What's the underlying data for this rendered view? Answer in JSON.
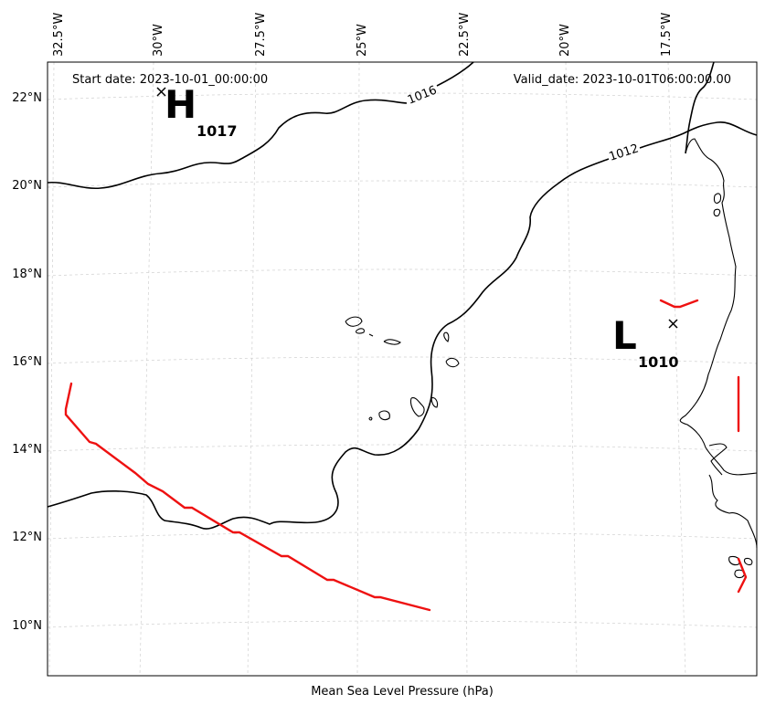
{
  "header": {
    "start_date": "Start date: 2023-10-01_00:00:00",
    "valid_date": "Valid_date: 2023-10-01T06:00:00.00"
  },
  "footer": {
    "xlabel": "Mean Sea Level Pressure (hPa)"
  },
  "axes": {
    "lon_ticks": [
      "32.5°W",
      "30°W",
      "27.5°W",
      "25°W",
      "22.5°W",
      "20°W",
      "17.5°W"
    ],
    "lat_ticks": [
      "22°N",
      "20°N",
      "18°N",
      "16°N",
      "14°N",
      "12°N",
      "10°N"
    ],
    "lon_range": [
      -33.0,
      -15.7
    ],
    "lat_range": [
      9.0,
      22.8
    ]
  },
  "pressure_centers": [
    {
      "type": "H",
      "value": "1017",
      "lon": -30.2,
      "lat": 22.1
    },
    {
      "type": "L",
      "value": "1010",
      "lon": -17.9,
      "lat": 16.8
    }
  ],
  "contour_labels": [
    {
      "value": "1016"
    },
    {
      "value": "1012"
    }
  ],
  "colors": {
    "contour": "#000000",
    "track": "#ee1111",
    "coast": "#000000",
    "grid": "#cccccc"
  }
}
